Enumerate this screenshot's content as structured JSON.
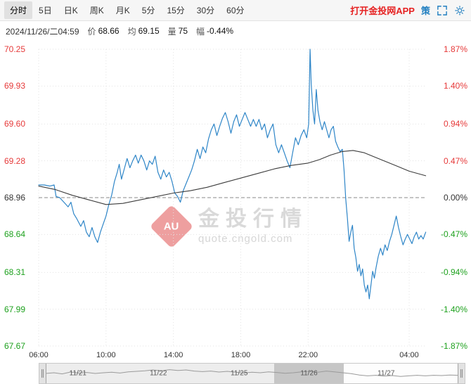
{
  "toolbar": {
    "tabs": [
      {
        "label": "分时",
        "selected": true
      },
      {
        "label": "5日",
        "selected": false
      },
      {
        "label": "日K",
        "selected": false
      },
      {
        "label": "周K",
        "selected": false
      },
      {
        "label": "月K",
        "selected": false
      },
      {
        "label": "5分",
        "selected": false
      },
      {
        "label": "15分",
        "selected": false
      },
      {
        "label": "30分",
        "selected": false
      },
      {
        "label": "60分",
        "selected": false
      }
    ],
    "app_link": "打开金投网APP",
    "strategy_label": "策"
  },
  "infobar": {
    "datetime": "2024/11/26/二04:59",
    "fields": [
      {
        "label": "价",
        "value": "68.66"
      },
      {
        "label": "均",
        "value": "69.15"
      },
      {
        "label": "量",
        "value": "75"
      },
      {
        "label": "幅",
        "value": "-0.44%"
      }
    ]
  },
  "watermark": {
    "seal_text": "AU",
    "title": "金投行情",
    "subtitle": "quote.cngold.com"
  },
  "navigator": {
    "dates": [
      {
        "label": "11/21",
        "x": 0.078
      },
      {
        "label": "11/22",
        "x": 0.273
      },
      {
        "label": "11/25",
        "x": 0.469
      },
      {
        "label": "11/26",
        "x": 0.638
      },
      {
        "label": "11/27",
        "x": 0.825
      }
    ],
    "selection": [
      0.553,
      0.723
    ],
    "sparkline": [
      [
        0,
        0.55
      ],
      [
        0.02,
        0.5
      ],
      [
        0.04,
        0.58
      ],
      [
        0.06,
        0.45
      ],
      [
        0.08,
        0.52
      ],
      [
        0.1,
        0.48
      ],
      [
        0.12,
        0.55
      ],
      [
        0.14,
        0.5
      ],
      [
        0.16,
        0.46
      ],
      [
        0.18,
        0.52
      ],
      [
        0.2,
        0.44
      ],
      [
        0.22,
        0.4
      ],
      [
        0.24,
        0.36
      ],
      [
        0.26,
        0.3
      ],
      [
        0.28,
        0.36
      ],
      [
        0.3,
        0.28
      ],
      [
        0.32,
        0.34
      ],
      [
        0.34,
        0.3
      ],
      [
        0.36,
        0.38
      ],
      [
        0.38,
        0.42
      ],
      [
        0.4,
        0.38
      ],
      [
        0.42,
        0.45
      ],
      [
        0.44,
        0.4
      ],
      [
        0.46,
        0.46
      ],
      [
        0.48,
        0.52
      ],
      [
        0.5,
        0.46
      ],
      [
        0.52,
        0.5
      ],
      [
        0.54,
        0.44
      ],
      [
        0.56,
        0.48
      ],
      [
        0.58,
        0.54
      ],
      [
        0.6,
        0.5
      ],
      [
        0.62,
        0.44
      ],
      [
        0.64,
        0.4
      ],
      [
        0.66,
        0.46
      ],
      [
        0.68,
        0.38
      ],
      [
        0.7,
        0.44
      ],
      [
        0.72,
        0.5
      ],
      [
        0.74,
        0.56
      ],
      [
        0.76,
        0.66
      ],
      [
        0.78,
        0.72
      ],
      [
        0.8,
        0.68
      ],
      [
        0.82,
        0.74
      ],
      [
        0.84,
        0.7
      ],
      [
        0.86,
        0.76
      ],
      [
        0.88,
        0.72
      ],
      [
        0.9,
        0.68
      ],
      [
        0.92,
        0.72
      ],
      [
        0.94,
        0.68
      ],
      [
        0.96,
        0.7
      ],
      [
        0.98,
        0.66
      ],
      [
        1,
        0.68
      ]
    ]
  },
  "chart_data": {
    "type": "line",
    "base_price": 68.96,
    "ylim": [
      67.67,
      70.25
    ],
    "x_max_minutes": 1380,
    "y_levels": [
      {
        "price": "70.25",
        "pct": "1.87%",
        "tone": "up"
      },
      {
        "price": "69.93",
        "pct": "1.40%",
        "tone": "up"
      },
      {
        "price": "69.60",
        "pct": "0.94%",
        "tone": "up"
      },
      {
        "price": "69.28",
        "pct": "0.47%",
        "tone": "up"
      },
      {
        "price": "68.96",
        "pct": "0.00%",
        "tone": "flat"
      },
      {
        "price": "68.64",
        "pct": "-0.47%",
        "tone": "down"
      },
      {
        "price": "68.31",
        "pct": "-0.94%",
        "tone": "down"
      },
      {
        "price": "67.99",
        "pct": "-1.40%",
        "tone": "down"
      },
      {
        "price": "67.67",
        "pct": "-1.87%",
        "tone": "down"
      }
    ],
    "x_ticks": [
      {
        "label": "06:00",
        "t": 0
      },
      {
        "label": "10:00",
        "t": 240
      },
      {
        "label": "14:00",
        "t": 480
      },
      {
        "label": "18:00",
        "t": 720
      },
      {
        "label": "22:00",
        "t": 960
      },
      {
        "label": "04:00",
        "t": 1320
      }
    ],
    "series": [
      {
        "name": "price",
        "color": "#2f86c8",
        "width": 1.2,
        "points": [
          [
            0,
            69.07
          ],
          [
            20,
            69.07
          ],
          [
            40,
            69.06
          ],
          [
            55,
            69.07
          ],
          [
            62,
            68.97
          ],
          [
            75,
            68.96
          ],
          [
            90,
            68.92
          ],
          [
            105,
            68.88
          ],
          [
            115,
            68.92
          ],
          [
            125,
            68.82
          ],
          [
            135,
            68.78
          ],
          [
            150,
            68.71
          ],
          [
            160,
            68.76
          ],
          [
            170,
            68.66
          ],
          [
            180,
            68.62
          ],
          [
            190,
            68.7
          ],
          [
            200,
            68.62
          ],
          [
            210,
            68.57
          ],
          [
            220,
            68.66
          ],
          [
            230,
            68.73
          ],
          [
            240,
            68.8
          ],
          [
            250,
            68.9
          ],
          [
            260,
            68.98
          ],
          [
            270,
            69.1
          ],
          [
            280,
            69.18
          ],
          [
            287,
            69.25
          ],
          [
            295,
            69.12
          ],
          [
            305,
            69.21
          ],
          [
            315,
            69.3
          ],
          [
            325,
            69.22
          ],
          [
            335,
            69.28
          ],
          [
            345,
            69.33
          ],
          [
            355,
            69.26
          ],
          [
            365,
            69.33
          ],
          [
            375,
            69.28
          ],
          [
            385,
            69.2
          ],
          [
            395,
            69.28
          ],
          [
            405,
            69.25
          ],
          [
            415,
            69.32
          ],
          [
            425,
            69.18
          ],
          [
            435,
            69.12
          ],
          [
            445,
            69.2
          ],
          [
            455,
            69.14
          ],
          [
            465,
            69.18
          ],
          [
            475,
            69.1
          ],
          [
            485,
            69.0
          ],
          [
            495,
            68.97
          ],
          [
            505,
            68.92
          ],
          [
            515,
            69.02
          ],
          [
            525,
            69.08
          ],
          [
            535,
            69.14
          ],
          [
            545,
            69.2
          ],
          [
            555,
            69.28
          ],
          [
            565,
            69.38
          ],
          [
            575,
            69.3
          ],
          [
            585,
            69.4
          ],
          [
            595,
            69.35
          ],
          [
            605,
            69.47
          ],
          [
            615,
            69.55
          ],
          [
            625,
            69.6
          ],
          [
            635,
            69.5
          ],
          [
            645,
            69.58
          ],
          [
            655,
            69.65
          ],
          [
            665,
            69.7
          ],
          [
            675,
            69.62
          ],
          [
            685,
            69.52
          ],
          [
            695,
            69.62
          ],
          [
            705,
            69.68
          ],
          [
            715,
            69.58
          ],
          [
            725,
            69.64
          ],
          [
            735,
            69.7
          ],
          [
            745,
            69.64
          ],
          [
            755,
            69.58
          ],
          [
            765,
            69.64
          ],
          [
            775,
            69.58
          ],
          [
            785,
            69.64
          ],
          [
            795,
            69.55
          ],
          [
            805,
            69.6
          ],
          [
            815,
            69.48
          ],
          [
            825,
            69.55
          ],
          [
            835,
            69.6
          ],
          [
            845,
            69.42
          ],
          [
            855,
            69.35
          ],
          [
            865,
            69.42
          ],
          [
            875,
            69.35
          ],
          [
            885,
            69.28
          ],
          [
            895,
            69.22
          ],
          [
            905,
            69.35
          ],
          [
            915,
            69.48
          ],
          [
            925,
            69.42
          ],
          [
            935,
            69.5
          ],
          [
            945,
            69.55
          ],
          [
            955,
            69.48
          ],
          [
            962,
            69.6
          ],
          [
            967,
            70.25
          ],
          [
            971,
            69.95
          ],
          [
            977,
            69.72
          ],
          [
            983,
            69.6
          ],
          [
            989,
            69.9
          ],
          [
            995,
            69.72
          ],
          [
            1002,
            69.62
          ],
          [
            1010,
            69.55
          ],
          [
            1018,
            69.62
          ],
          [
            1026,
            69.55
          ],
          [
            1034,
            69.48
          ],
          [
            1042,
            69.55
          ],
          [
            1050,
            69.58
          ],
          [
            1058,
            69.45
          ],
          [
            1066,
            69.4
          ],
          [
            1074,
            69.36
          ],
          [
            1082,
            69.38
          ],
          [
            1088,
            69.2
          ],
          [
            1094,
            68.95
          ],
          [
            1100,
            68.78
          ],
          [
            1106,
            68.58
          ],
          [
            1112,
            68.66
          ],
          [
            1118,
            68.72
          ],
          [
            1124,
            68.52
          ],
          [
            1130,
            68.44
          ],
          [
            1136,
            68.32
          ],
          [
            1142,
            68.38
          ],
          [
            1148,
            68.28
          ],
          [
            1154,
            68.34
          ],
          [
            1160,
            68.2
          ],
          [
            1166,
            68.14
          ],
          [
            1172,
            68.2
          ],
          [
            1178,
            68.08
          ],
          [
            1184,
            68.2
          ],
          [
            1190,
            68.32
          ],
          [
            1196,
            68.26
          ],
          [
            1202,
            68.35
          ],
          [
            1210,
            68.45
          ],
          [
            1218,
            68.52
          ],
          [
            1226,
            68.46
          ],
          [
            1234,
            68.55
          ],
          [
            1242,
            68.5
          ],
          [
            1250,
            68.58
          ],
          [
            1258,
            68.64
          ],
          [
            1266,
            68.72
          ],
          [
            1274,
            68.8
          ],
          [
            1282,
            68.7
          ],
          [
            1290,
            68.62
          ],
          [
            1298,
            68.55
          ],
          [
            1306,
            68.6
          ],
          [
            1314,
            68.64
          ],
          [
            1322,
            68.6
          ],
          [
            1330,
            68.56
          ],
          [
            1338,
            68.62
          ],
          [
            1346,
            68.66
          ],
          [
            1354,
            68.6
          ],
          [
            1362,
            68.63
          ],
          [
            1370,
            68.6
          ],
          [
            1379,
            68.66
          ]
        ]
      },
      {
        "name": "average",
        "color": "#3c3c3c",
        "width": 1.1,
        "points": [
          [
            0,
            69.06
          ],
          [
            60,
            69.03
          ],
          [
            120,
            68.98
          ],
          [
            180,
            68.94
          ],
          [
            240,
            68.9
          ],
          [
            300,
            68.91
          ],
          [
            360,
            68.94
          ],
          [
            420,
            68.97
          ],
          [
            480,
            69.0
          ],
          [
            540,
            69.02
          ],
          [
            600,
            69.05
          ],
          [
            660,
            69.09
          ],
          [
            720,
            69.13
          ],
          [
            780,
            69.17
          ],
          [
            840,
            69.21
          ],
          [
            900,
            69.24
          ],
          [
            960,
            69.26
          ],
          [
            1000,
            69.29
          ],
          [
            1040,
            69.33
          ],
          [
            1080,
            69.36
          ],
          [
            1120,
            69.37
          ],
          [
            1160,
            69.35
          ],
          [
            1200,
            69.31
          ],
          [
            1240,
            69.27
          ],
          [
            1280,
            69.23
          ],
          [
            1320,
            69.19
          ],
          [
            1379,
            69.15
          ]
        ]
      }
    ]
  }
}
